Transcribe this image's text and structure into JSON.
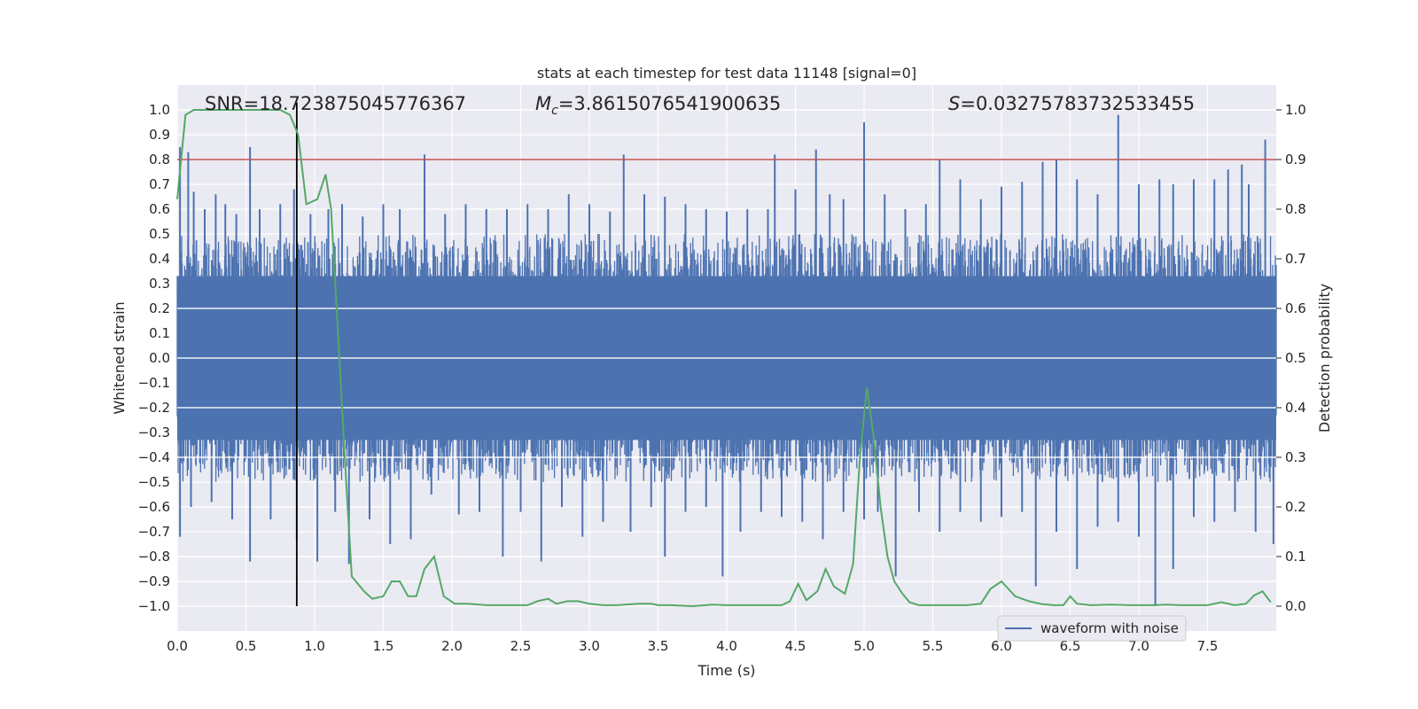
{
  "chart_data": {
    "type": "line",
    "title": "stats at each timestep for test data 11148 [signal=0]",
    "xlabel": "Time (s)",
    "ylabel_left": "Whitened strain",
    "ylabel_right": "Detection probability",
    "xlim": [
      0.0,
      8.0
    ],
    "ylim_left": [
      -1.1,
      1.1
    ],
    "ylim_right": [
      -0.05,
      1.05
    ],
    "x_ticks": [
      "0.0",
      "0.5",
      "1.0",
      "1.5",
      "2.0",
      "2.5",
      "3.0",
      "3.5",
      "4.0",
      "4.5",
      "5.0",
      "5.5",
      "6.0",
      "6.5",
      "7.0",
      "7.5"
    ],
    "y_left_ticks": [
      "1.0",
      "0.9",
      "0.8",
      "0.7",
      "0.6",
      "0.5",
      "0.4",
      "0.3",
      "0.2",
      "0.1",
      "0.0",
      "−0.1",
      "−0.2",
      "−0.3",
      "−0.4",
      "−0.5",
      "−0.6",
      "−0.7",
      "−0.8",
      "−0.9",
      "−1.0"
    ],
    "y_right_ticks": [
      "1.0",
      "0.9",
      "0.8",
      "0.7",
      "0.6",
      "0.5",
      "0.4",
      "0.3",
      "0.2",
      "0.1",
      "0.0"
    ],
    "annotations": {
      "snr": "SNR=18.723875045776367",
      "mc_symbol": "M",
      "mc_sub": "c",
      "mc_value": "=3.8615076541900635",
      "s_symbol": "S",
      "s_value": "=0.03275783732533455"
    },
    "threshold_line": {
      "y_right": 0.9,
      "color": "#c44e52"
    },
    "vertical_marker": {
      "x": 0.87,
      "color": "#000000"
    },
    "legend": {
      "label": "waveform with noise",
      "placement": "lower-right"
    },
    "series": [
      {
        "name": "waveform with noise",
        "axis": "left",
        "color": "#4c72b0",
        "spikes_up": [
          [
            0.02,
            0.85
          ],
          [
            0.08,
            0.83
          ],
          [
            0.12,
            0.67
          ],
          [
            0.2,
            0.6
          ],
          [
            0.28,
            0.66
          ],
          [
            0.35,
            0.62
          ],
          [
            0.43,
            0.58
          ],
          [
            0.53,
            0.85
          ],
          [
            0.6,
            0.6
          ],
          [
            0.75,
            0.62
          ],
          [
            0.85,
            0.68
          ],
          [
            0.97,
            0.58
          ],
          [
            1.1,
            0.6
          ],
          [
            1.2,
            0.62
          ],
          [
            1.35,
            0.57
          ],
          [
            1.5,
            0.62
          ],
          [
            1.62,
            0.6
          ],
          [
            1.8,
            0.82
          ],
          [
            1.95,
            0.58
          ],
          [
            2.1,
            0.62
          ],
          [
            2.25,
            0.6
          ],
          [
            2.4,
            0.6
          ],
          [
            2.55,
            0.62
          ],
          [
            2.7,
            0.6
          ],
          [
            2.85,
            0.66
          ],
          [
            3.0,
            0.62
          ],
          [
            3.15,
            0.59
          ],
          [
            3.25,
            0.82
          ],
          [
            3.4,
            0.66
          ],
          [
            3.55,
            0.65
          ],
          [
            3.7,
            0.62
          ],
          [
            3.85,
            0.6
          ],
          [
            4.0,
            0.59
          ],
          [
            4.15,
            0.6
          ],
          [
            4.3,
            0.6
          ],
          [
            4.35,
            0.82
          ],
          [
            4.5,
            0.68
          ],
          [
            4.65,
            0.84
          ],
          [
            4.75,
            0.66
          ],
          [
            4.85,
            0.64
          ],
          [
            5.0,
            0.95
          ],
          [
            5.15,
            0.66
          ],
          [
            5.3,
            0.6
          ],
          [
            5.45,
            0.62
          ],
          [
            5.55,
            0.8
          ],
          [
            5.7,
            0.72
          ],
          [
            5.85,
            0.64
          ],
          [
            6.0,
            0.69
          ],
          [
            6.15,
            0.71
          ],
          [
            6.3,
            0.79
          ],
          [
            6.4,
            0.8
          ],
          [
            6.55,
            0.72
          ],
          [
            6.7,
            0.66
          ],
          [
            6.85,
            0.98
          ],
          [
            7.0,
            0.7
          ],
          [
            7.15,
            0.72
          ],
          [
            7.25,
            0.7
          ],
          [
            7.4,
            0.72
          ],
          [
            7.55,
            0.72
          ],
          [
            7.65,
            0.76
          ],
          [
            7.75,
            0.78
          ],
          [
            7.8,
            0.7
          ],
          [
            7.92,
            0.88
          ]
        ],
        "spikes_down": [
          [
            0.02,
            -0.72
          ],
          [
            0.1,
            -0.6
          ],
          [
            0.25,
            -0.58
          ],
          [
            0.4,
            -0.65
          ],
          [
            0.53,
            -0.82
          ],
          [
            0.68,
            -0.65
          ],
          [
            0.87,
            -0.73
          ],
          [
            1.02,
            -0.82
          ],
          [
            1.15,
            -0.62
          ],
          [
            1.25,
            -0.83
          ],
          [
            1.4,
            -0.65
          ],
          [
            1.55,
            -0.75
          ],
          [
            1.7,
            -0.73
          ],
          [
            1.85,
            -0.55
          ],
          [
            2.05,
            -0.63
          ],
          [
            2.2,
            -0.62
          ],
          [
            2.37,
            -0.8
          ],
          [
            2.5,
            -0.62
          ],
          [
            2.65,
            -0.82
          ],
          [
            2.8,
            -0.6
          ],
          [
            2.95,
            -0.72
          ],
          [
            3.1,
            -0.66
          ],
          [
            3.3,
            -0.7
          ],
          [
            3.45,
            -0.6
          ],
          [
            3.55,
            -0.8
          ],
          [
            3.7,
            -0.62
          ],
          [
            3.85,
            -0.6
          ],
          [
            3.97,
            -0.88
          ],
          [
            4.1,
            -0.7
          ],
          [
            4.25,
            -0.62
          ],
          [
            4.4,
            -0.64
          ],
          [
            4.55,
            -0.66
          ],
          [
            4.7,
            -0.73
          ],
          [
            4.85,
            -0.62
          ],
          [
            5.0,
            -0.65
          ],
          [
            5.1,
            -0.62
          ],
          [
            5.23,
            -0.88
          ],
          [
            5.4,
            -0.62
          ],
          [
            5.55,
            -0.7
          ],
          [
            5.7,
            -0.62
          ],
          [
            5.85,
            -0.66
          ],
          [
            6.0,
            -0.64
          ],
          [
            6.15,
            -0.62
          ],
          [
            6.25,
            -0.92
          ],
          [
            6.4,
            -0.7
          ],
          [
            6.55,
            -0.85
          ],
          [
            6.7,
            -0.68
          ],
          [
            6.85,
            -0.66
          ],
          [
            7.0,
            -0.72
          ],
          [
            7.12,
            -1.0
          ],
          [
            7.25,
            -0.85
          ],
          [
            7.4,
            -0.64
          ],
          [
            7.55,
            -0.66
          ],
          [
            7.7,
            -0.62
          ],
          [
            7.85,
            -0.7
          ],
          [
            7.98,
            -0.75
          ]
        ]
      },
      {
        "name": "detection probability",
        "axis": "right",
        "color": "#55a868",
        "x": [
          0.0,
          0.06,
          0.12,
          0.2,
          0.3,
          0.4,
          0.5,
          0.6,
          0.7,
          0.75,
          0.82,
          0.88,
          0.94,
          1.02,
          1.08,
          1.12,
          1.17,
          1.23,
          1.27,
          1.3,
          1.36,
          1.42,
          1.5,
          1.56,
          1.62,
          1.68,
          1.74,
          1.8,
          1.87,
          1.94,
          2.02,
          2.12,
          2.25,
          2.4,
          2.55,
          2.62,
          2.7,
          2.76,
          2.84,
          2.92,
          3.0,
          3.1,
          3.2,
          3.35,
          3.45,
          3.5,
          3.6,
          3.75,
          3.9,
          4.0,
          4.1,
          4.25,
          4.4,
          4.46,
          4.52,
          4.58,
          4.66,
          4.72,
          4.78,
          4.86,
          4.92,
          4.97,
          5.02,
          5.07,
          5.12,
          5.17,
          5.22,
          5.28,
          5.33,
          5.4,
          5.5,
          5.6,
          5.75,
          5.85,
          5.92,
          6.0,
          6.1,
          6.2,
          6.3,
          6.38,
          6.45,
          6.5,
          6.55,
          6.65,
          6.8,
          6.95,
          7.1,
          7.2,
          7.3,
          7.4,
          7.5,
          7.6,
          7.7,
          7.78,
          7.84,
          7.9,
          7.96
        ],
        "y": [
          0.82,
          0.99,
          1.0,
          1.0,
          1.0,
          1.0,
          1.0,
          1.0,
          1.0,
          1.0,
          0.99,
          0.95,
          0.81,
          0.82,
          0.87,
          0.8,
          0.55,
          0.25,
          0.06,
          0.05,
          0.03,
          0.015,
          0.02,
          0.05,
          0.05,
          0.02,
          0.02,
          0.075,
          0.1,
          0.02,
          0.005,
          0.005,
          0.002,
          0.002,
          0.002,
          0.01,
          0.015,
          0.005,
          0.01,
          0.01,
          0.005,
          0.002,
          0.002,
          0.005,
          0.005,
          0.002,
          0.002,
          0.0,
          0.003,
          0.002,
          0.002,
          0.002,
          0.002,
          0.01,
          0.045,
          0.012,
          0.03,
          0.075,
          0.04,
          0.025,
          0.085,
          0.3,
          0.44,
          0.34,
          0.2,
          0.1,
          0.05,
          0.025,
          0.008,
          0.002,
          0.002,
          0.002,
          0.002,
          0.005,
          0.035,
          0.05,
          0.02,
          0.01,
          0.004,
          0.002,
          0.002,
          0.02,
          0.005,
          0.002,
          0.003,
          0.002,
          0.002,
          0.003,
          0.002,
          0.002,
          0.002,
          0.008,
          0.002,
          0.005,
          0.022,
          0.03,
          0.008
        ]
      }
    ]
  }
}
